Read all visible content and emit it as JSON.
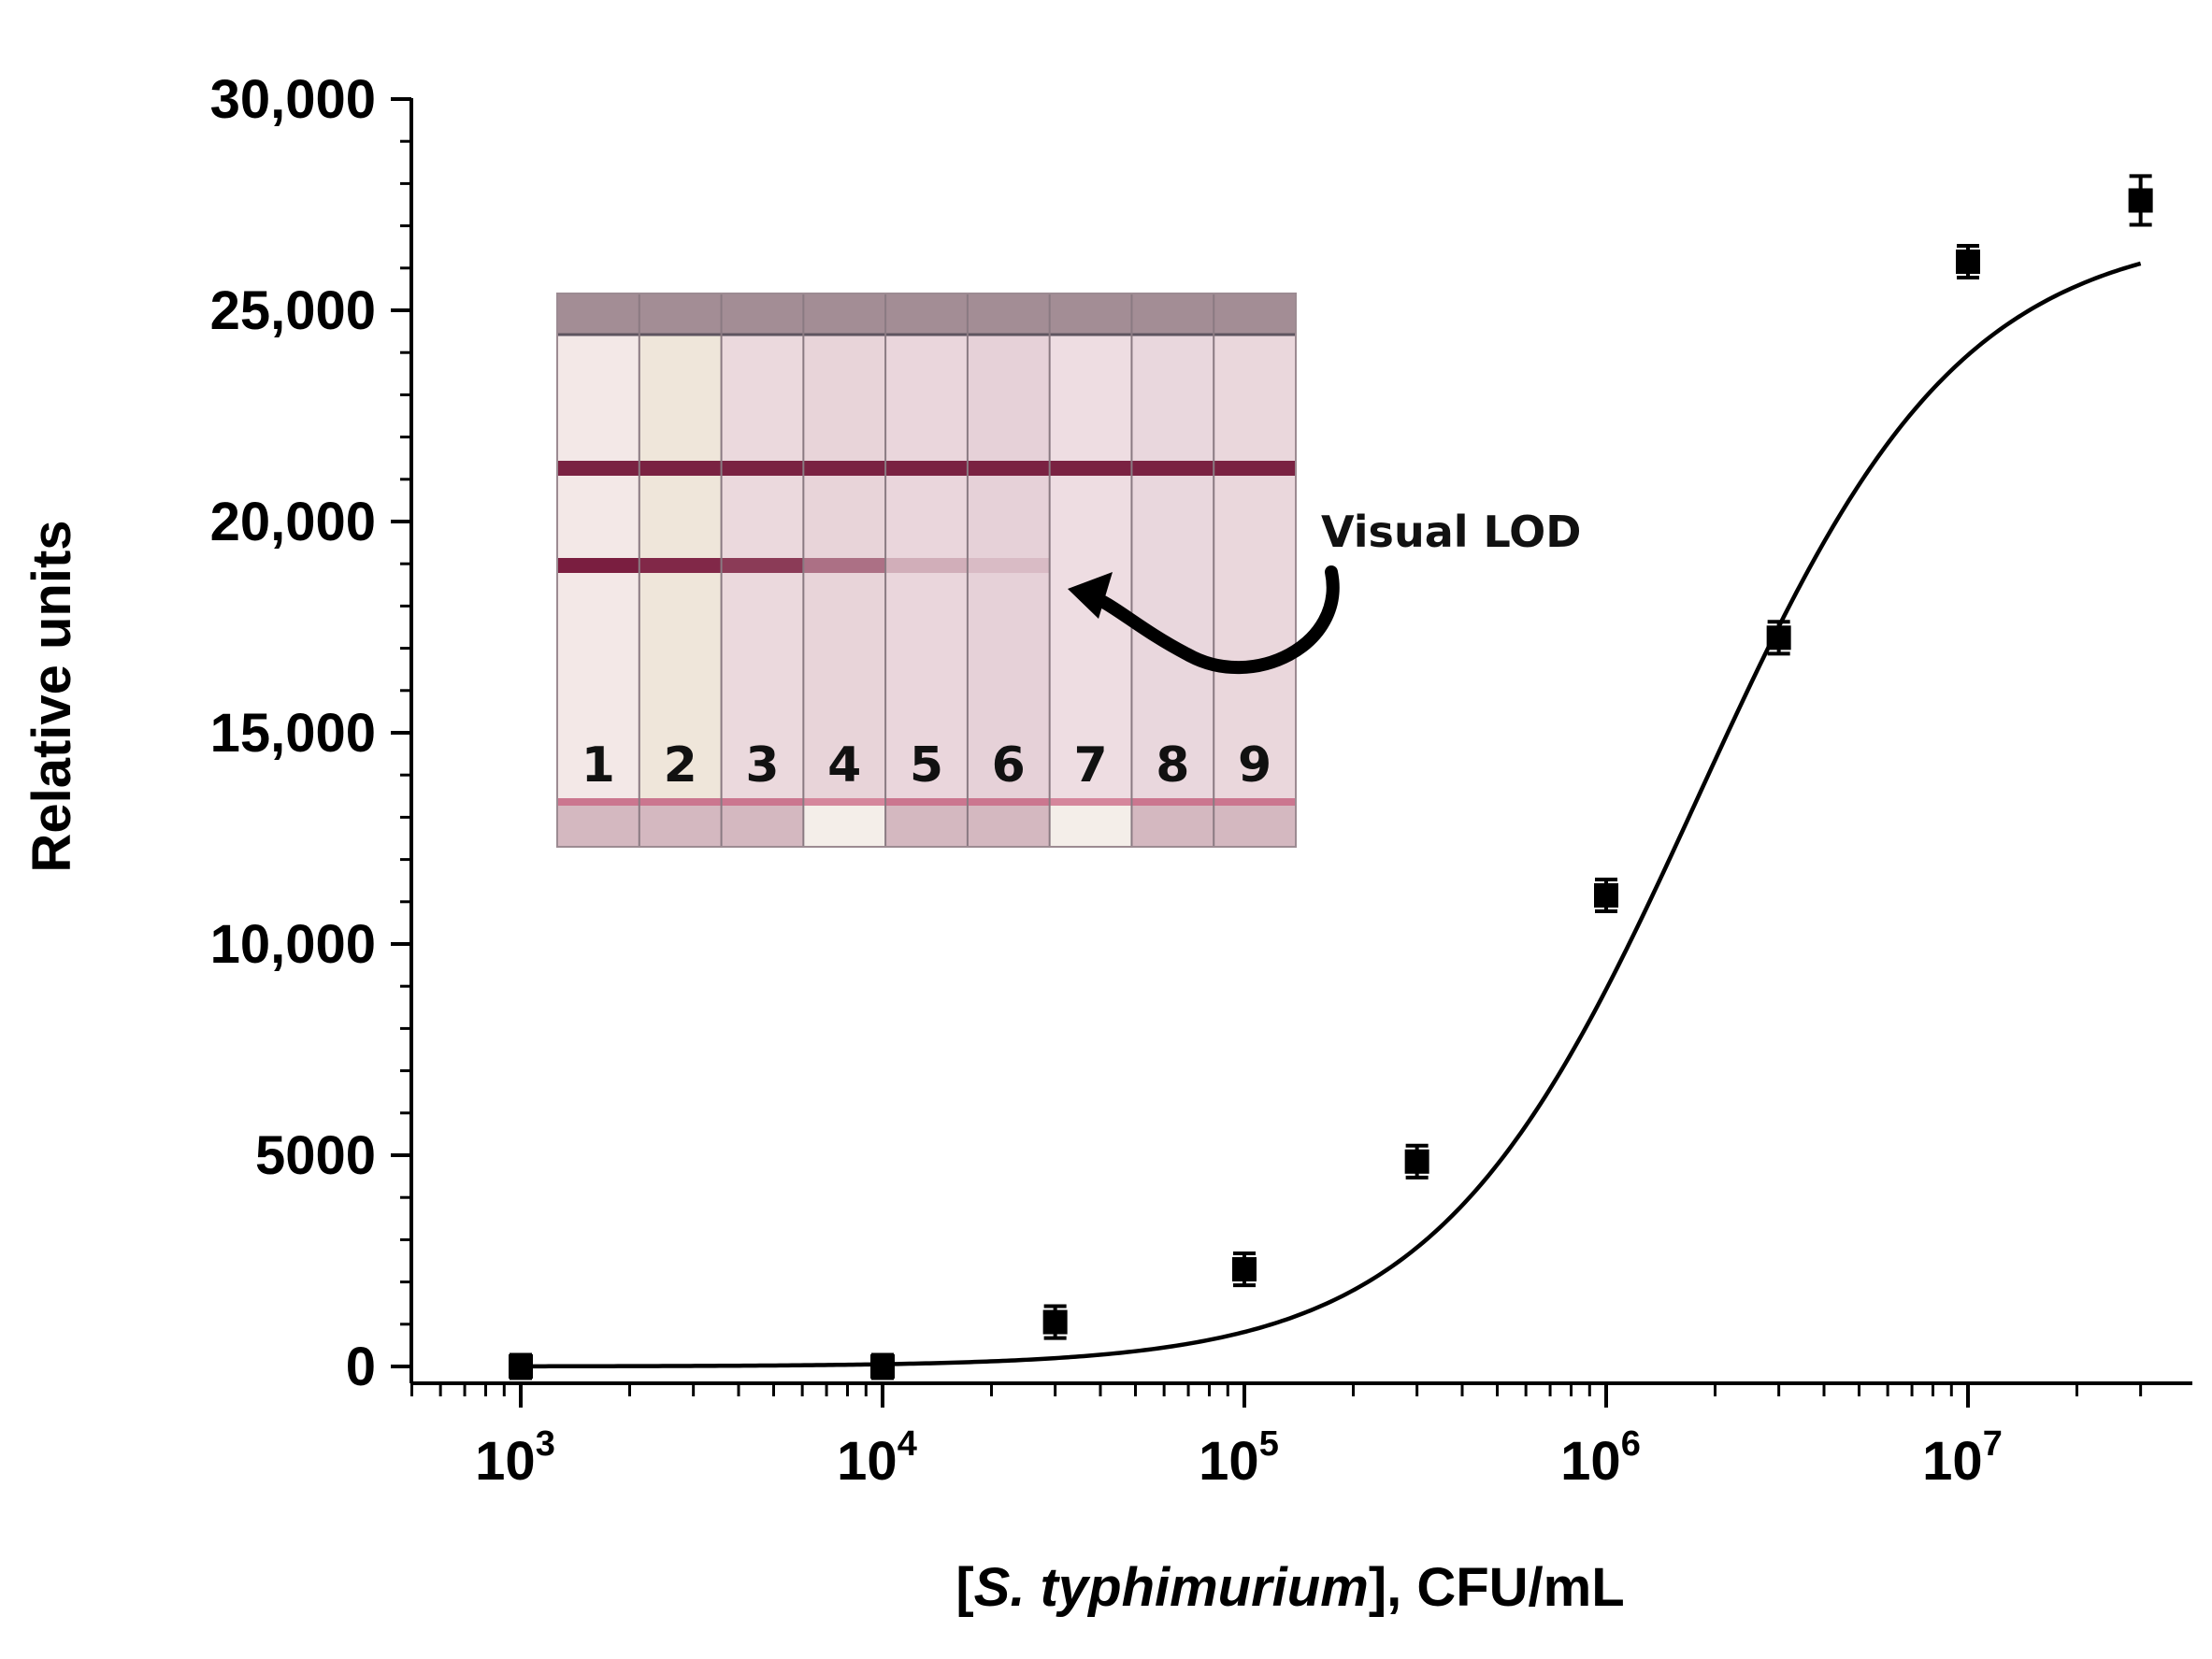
{
  "chart_data": {
    "type": "scatter",
    "title": "",
    "xlabel": {
      "prefix": "[",
      "italic": "S. typhimurium",
      "suffix": "], CFU/mL"
    },
    "ylabel": "Relative units",
    "x_scale": "log",
    "xlim": [
      500,
      35000000
    ],
    "ylim": [
      -400,
      30000
    ],
    "x_major_ticks": [
      {
        "value": 1000,
        "base": "10",
        "exp": "3"
      },
      {
        "value": 10000,
        "base": "10",
        "exp": "4"
      },
      {
        "value": 100000,
        "base": "10",
        "exp": "5"
      },
      {
        "value": 1000000,
        "base": "10",
        "exp": "6"
      },
      {
        "value": 10000000,
        "base": "10",
        "exp": "7"
      }
    ],
    "y_major_ticks": [
      {
        "value": 0,
        "label": "0"
      },
      {
        "value": 5000,
        "label": "5000"
      },
      {
        "value": 10000,
        "label": "10,000"
      },
      {
        "value": 15000,
        "label": "15,000"
      },
      {
        "value": 20000,
        "label": "20,000"
      },
      {
        "value": 25000,
        "label": "25,000"
      },
      {
        "value": 30000,
        "label": "30,000"
      }
    ],
    "series": [
      {
        "kind": "points",
        "marker": "square",
        "color": "#000000",
        "x": [
          1000,
          10000,
          30000,
          100000,
          300000,
          1000000,
          3000000,
          10000000,
          30000000
        ],
        "y": [
          0,
          0,
          1050,
          2300,
          4850,
          11150,
          17250,
          26150,
          27600
        ],
        "error": [
          100,
          100,
          200,
          200,
          200,
          200,
          200,
          200,
          400
        ]
      },
      {
        "kind": "fit",
        "model": "four-parameter logistic",
        "color": "#000000",
        "bottom": 0,
        "top": 27000,
        "ec50": 1800000,
        "hill": 1.2,
        "x_range": [
          1000,
          30000000
        ]
      }
    ],
    "grid": false,
    "legend": "none"
  },
  "inset": {
    "strip_labels": [
      "1",
      "2",
      "3",
      "4",
      "5",
      "6",
      "7",
      "8",
      "9"
    ],
    "test_line_intensity": [
      1.0,
      0.95,
      0.85,
      0.55,
      0.22,
      0.12,
      0.0,
      0.0,
      0.0
    ],
    "control_line_color": "#7a2242",
    "test_line_color": "#7a1e40",
    "annotation": "Visual LOD"
  }
}
